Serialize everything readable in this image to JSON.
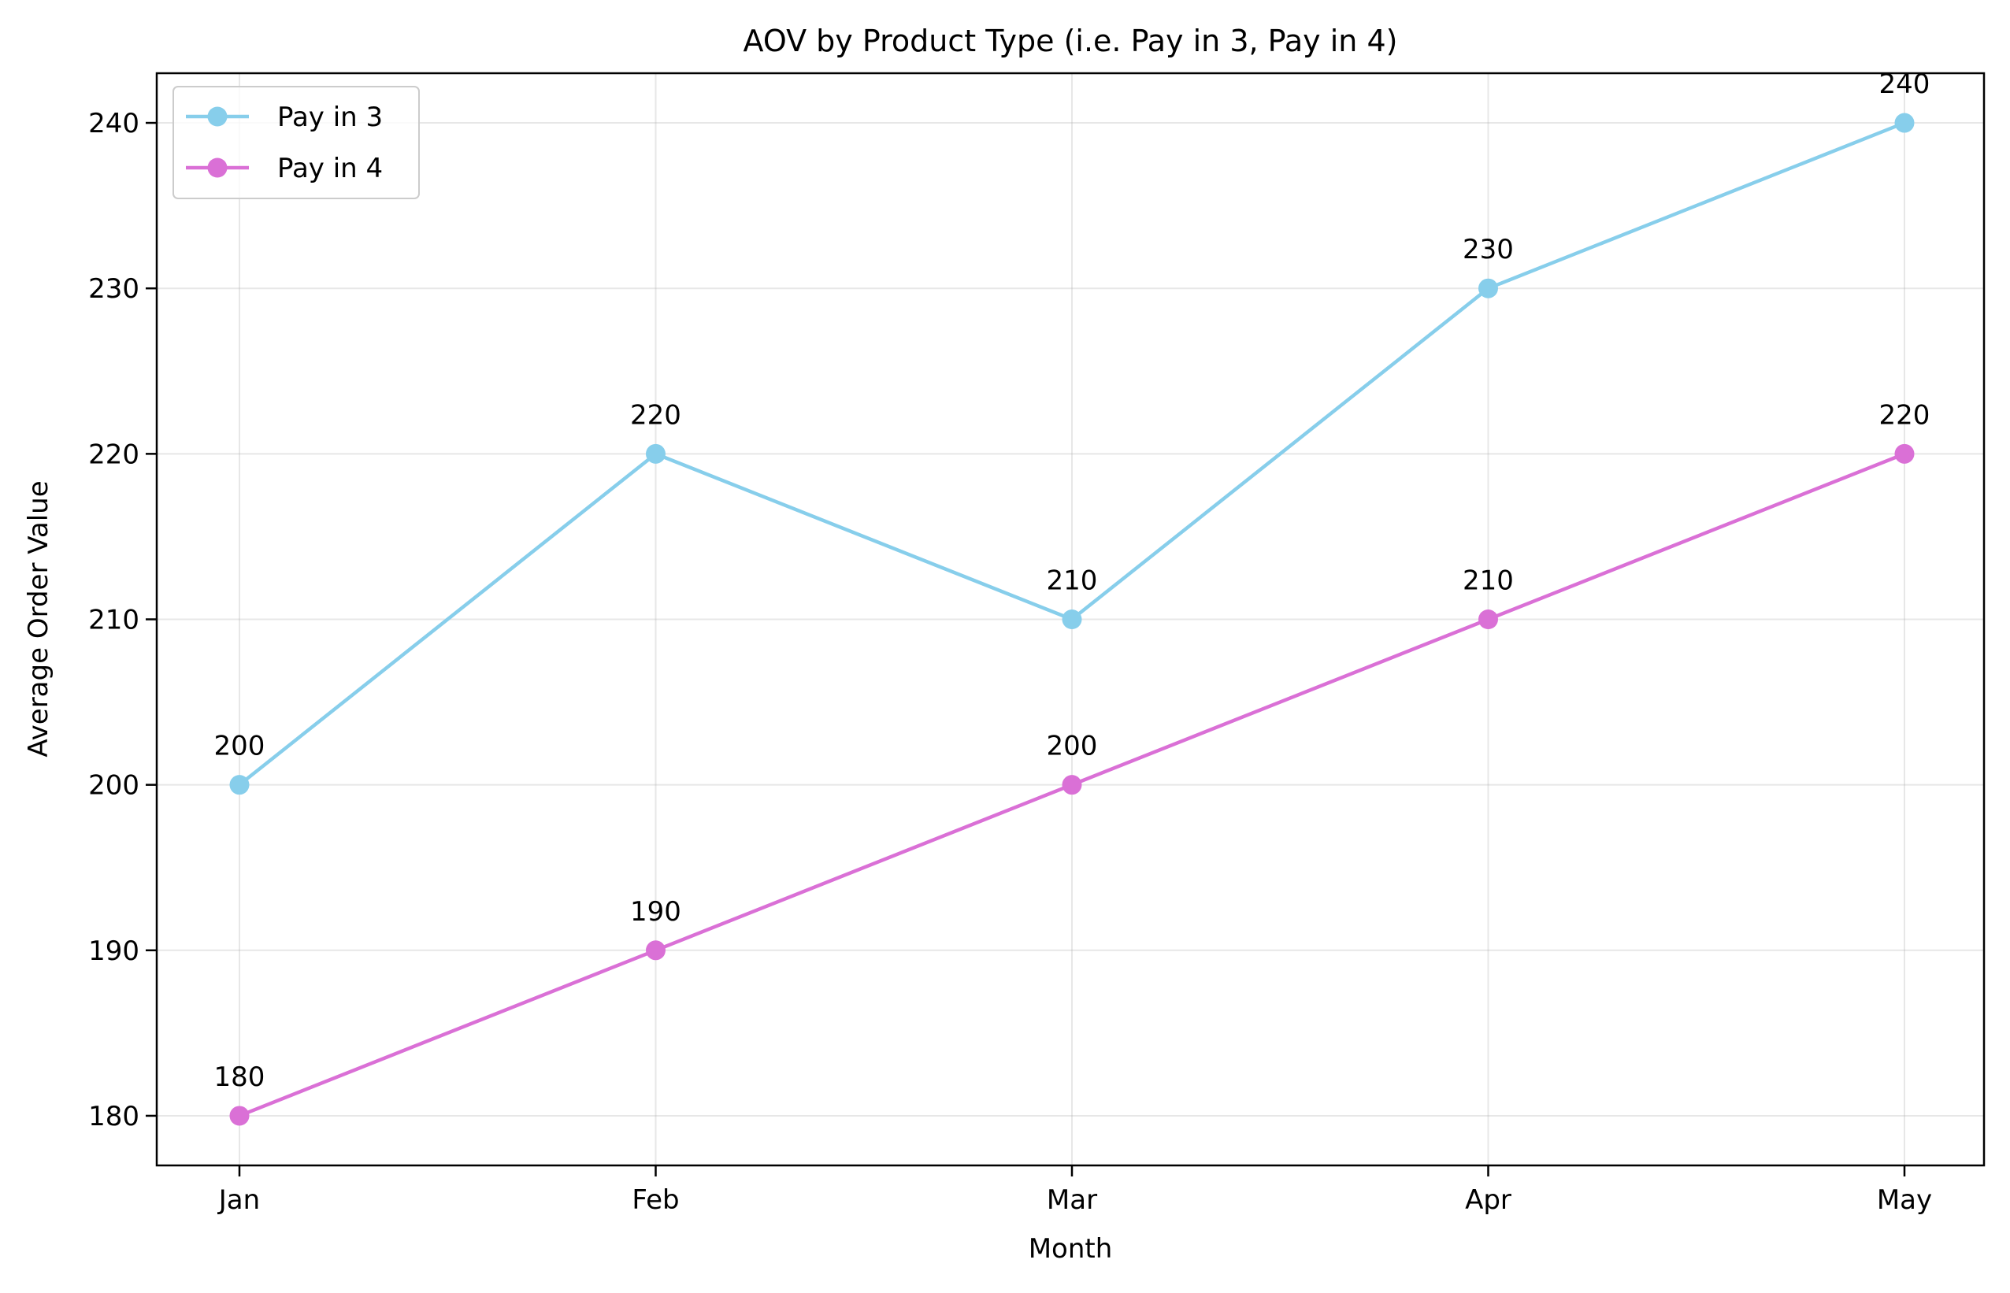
{
  "chart_data": {
    "type": "line",
    "title": "AOV by Product Type (i.e. Pay in 3, Pay in 4)",
    "xlabel": "Month",
    "ylabel": "Average Order Value",
    "categories": [
      "Jan",
      "Feb",
      "Mar",
      "Apr",
      "May"
    ],
    "ylim": [
      177,
      243
    ],
    "yticks": [
      180,
      190,
      200,
      210,
      220,
      230,
      240
    ],
    "grid": true,
    "legend_position": "top-left",
    "series": [
      {
        "name": "Pay in 3",
        "color": "#87CEEB",
        "values": [
          200,
          220,
          210,
          230,
          240
        ],
        "data_labels": [
          "200",
          "220",
          "210",
          "230",
          "240"
        ]
      },
      {
        "name": "Pay in 4",
        "color": "#DA70D6",
        "values": [
          180,
          190,
          200,
          210,
          220
        ],
        "data_labels": [
          "180",
          "190",
          "200",
          "210",
          "220"
        ]
      }
    ]
  }
}
